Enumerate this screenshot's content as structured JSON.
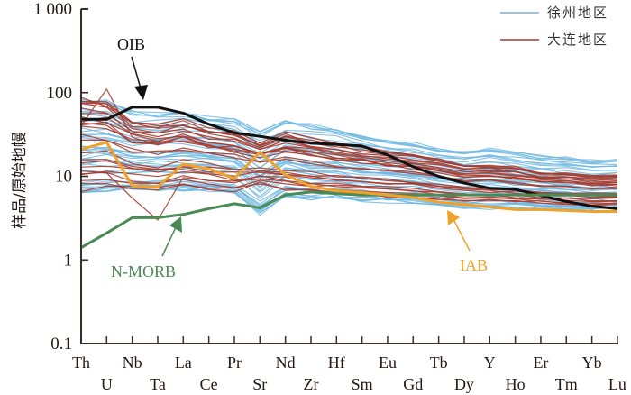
{
  "chart_data": {
    "type": "line",
    "title": "",
    "xlabel": "",
    "ylabel": "样品/原始地幔",
    "yscale": "log",
    "ylim": [
      0.1,
      1000
    ],
    "yticks": [
      {
        "value": 1000,
        "label": "1 000"
      },
      {
        "value": 100,
        "label": "100"
      },
      {
        "value": 10,
        "label": "10"
      },
      {
        "value": 1,
        "label": "1"
      },
      {
        "value": 0.1,
        "label": "0.1"
      }
    ],
    "categories": [
      "Th",
      "U",
      "Nb",
      "Ta",
      "La",
      "Ce",
      "Pr",
      "Sr",
      "Nd",
      "Zr",
      "Hf",
      "Sm",
      "Eu",
      "Gd",
      "Tb",
      "Dy",
      "Y",
      "Ho",
      "Er",
      "Tm",
      "Yb",
      "Lu"
    ],
    "grid": false,
    "legend": {
      "position": "top-right",
      "entries": [
        {
          "name": "徐州地区",
          "color": "#6fb7e0"
        },
        {
          "name": "大连地区",
          "color": "#a63a2c"
        }
      ]
    },
    "reference_series": [
      {
        "name": "OIB",
        "color": "#111111",
        "values": [
          48,
          48,
          67,
          67,
          57,
          42,
          33,
          30,
          27,
          25,
          24,
          23,
          18,
          13,
          10,
          8.3,
          7.2,
          7.0,
          5.9,
          5.0,
          4.4,
          4.1
        ]
      },
      {
        "name": "N-MORB",
        "color": "#4a8a55",
        "values": [
          1.4,
          2.1,
          3.2,
          3.2,
          3.5,
          4.1,
          4.7,
          4.2,
          6.0,
          6.5,
          6.2,
          6.0,
          6.0,
          6.0,
          6.0,
          6.0,
          6.0,
          6.0,
          6.0,
          6.0,
          6.0,
          6.0
        ]
      },
      {
        "name": "IAB",
        "color": "#f0a12a",
        "values": [
          21,
          25.5,
          7.7,
          7.5,
          14,
          12.3,
          9.4,
          19.5,
          10.4,
          7.6,
          6.7,
          6.4,
          6.0,
          5.6,
          4.9,
          4.6,
          4.3,
          4.0,
          4.0,
          3.9,
          3.8,
          3.8
        ]
      }
    ],
    "sample_groups": [
      {
        "name": "徐州地区",
        "color": "#6fb7e0",
        "profile_high": [
          90,
          85,
          60,
          58,
          62,
          55,
          50,
          35,
          48,
          42,
          38,
          32,
          28,
          26,
          22,
          20,
          22,
          20,
          18,
          17,
          16,
          16
        ],
        "profile_low": [
          6,
          6.5,
          6.8,
          6.8,
          7,
          6.8,
          6.5,
          3.5,
          6,
          5.5,
          5.5,
          5.2,
          5,
          4.9,
          4.6,
          4.3,
          4.2,
          4.1,
          4,
          3.9,
          3.7,
          3.7
        ],
        "count": 45
      },
      {
        "name": "大连地区",
        "color": "#a63a2c",
        "profile_high": [
          110,
          100,
          55,
          50,
          55,
          45,
          40,
          28,
          38,
          32,
          28,
          25,
          22,
          20,
          18,
          15,
          15,
          14,
          12,
          12,
          11,
          11
        ],
        "profile_low": [
          7,
          7.5,
          7,
          6.8,
          7.5,
          7.2,
          6.8,
          8,
          6.8,
          6.5,
          6.2,
          6,
          5.8,
          5.6,
          5.3,
          5,
          5,
          4.9,
          4.8,
          4.7,
          4.6,
          4.6
        ],
        "count": 25
      }
    ],
    "annotations": [
      {
        "text": "OIB",
        "color": "#111111",
        "points_to": "Nb"
      },
      {
        "text": "N-MORB",
        "color": "#4a8a55",
        "points_to": "La"
      },
      {
        "text": "IAB",
        "color": "#f0a12a",
        "points_to": "Dy"
      }
    ]
  }
}
